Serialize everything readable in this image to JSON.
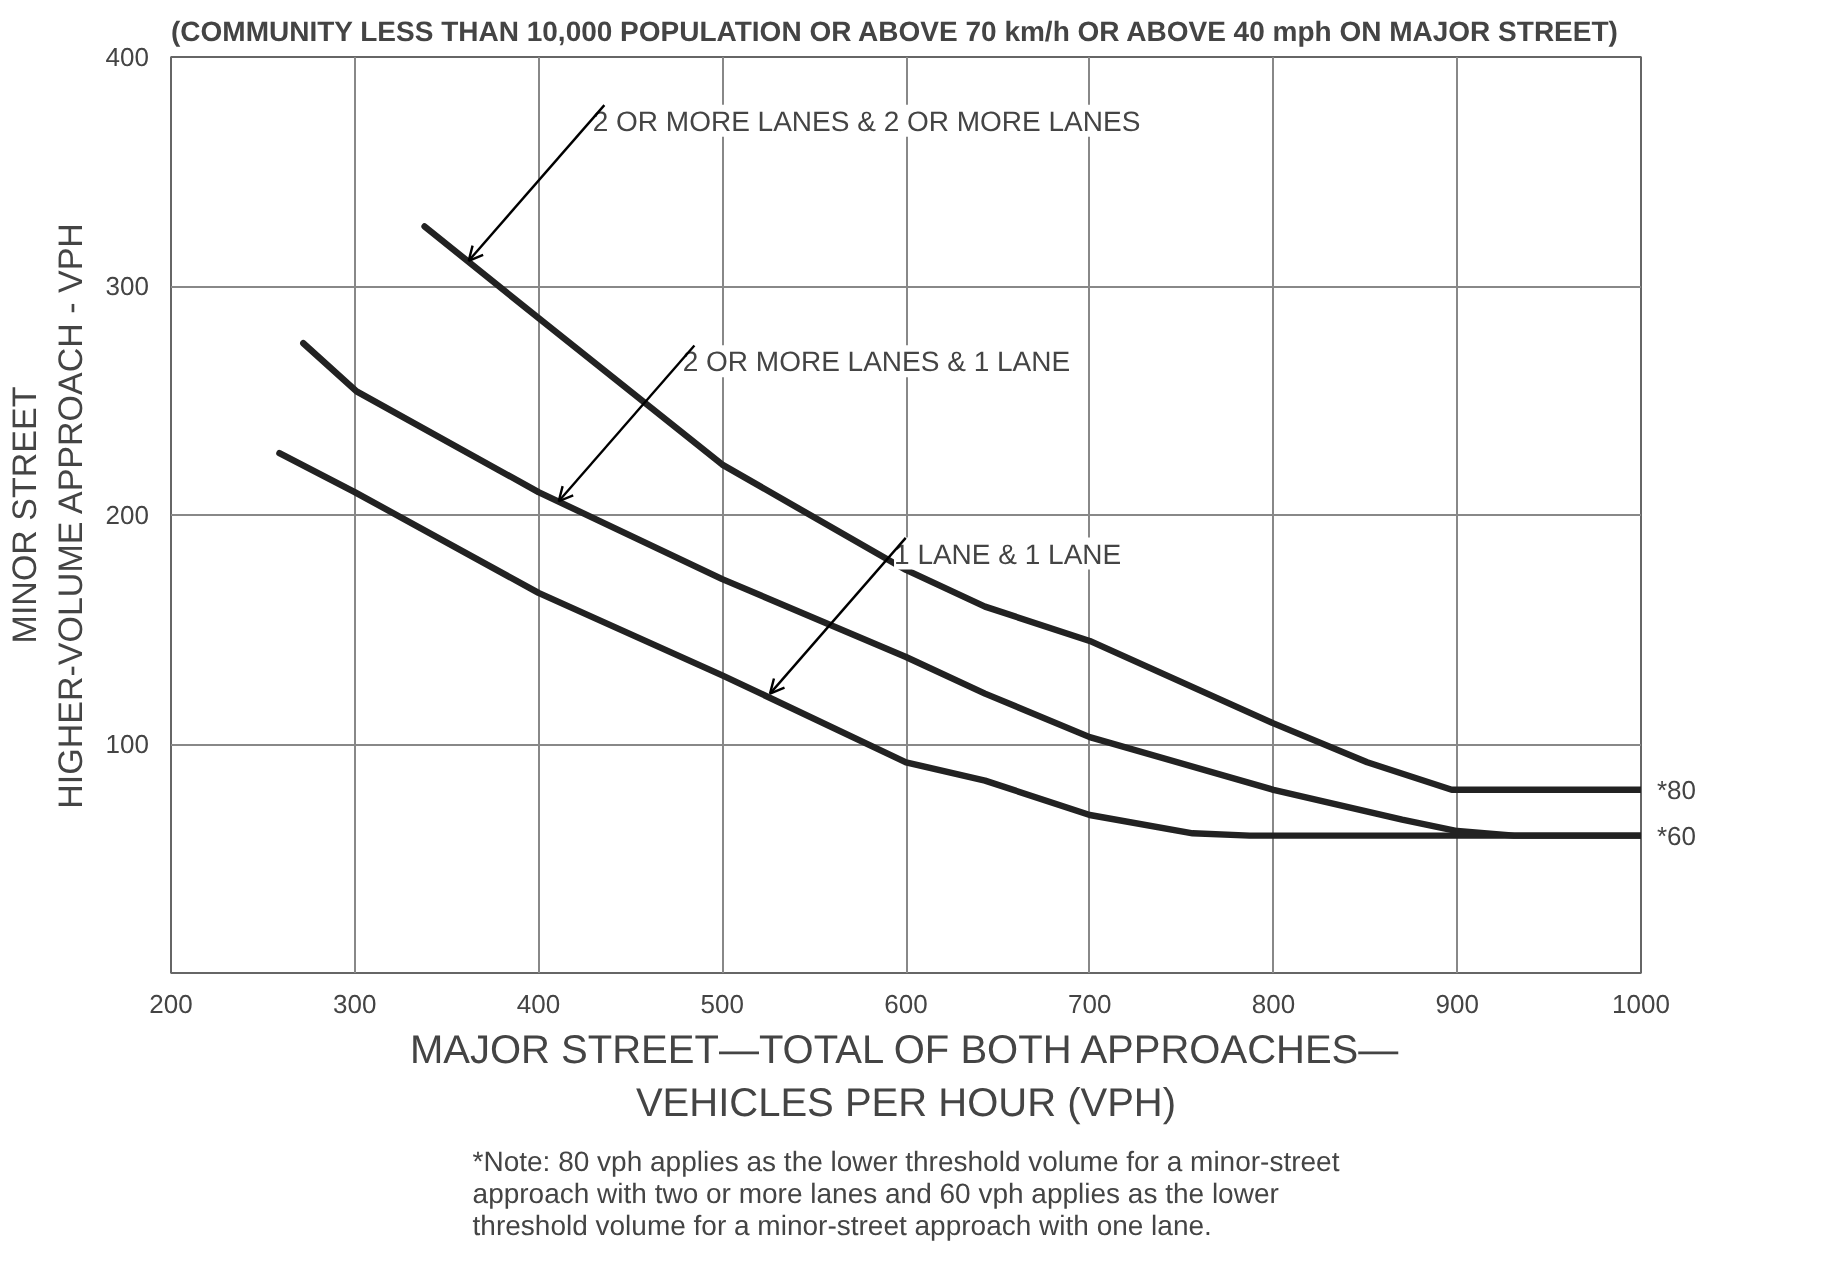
{
  "chart_data": {
    "type": "line",
    "title": "(COMMUNITY LESS THAN 10,000 POPULATION OR ABOVE 70 km/h OR ABOVE 40 mph ON MAJOR STREET)",
    "xlabel": "MAJOR STREET—TOTAL OF BOTH APPROACHES—\nVEHICLES PER HOUR (VPH)",
    "ylabel": "MINOR STREET\nHIGHER-VOLUME APPROACH - VPH",
    "xlim": [
      200,
      1000
    ],
    "ylim": [
      0,
      400
    ],
    "xticks": [
      200,
      300,
      400,
      500,
      600,
      700,
      800,
      900,
      1000
    ],
    "yticks": [
      {
        "value": 0,
        "label": null
      },
      100,
      200,
      300,
      400
    ],
    "grid": true,
    "marker": "none",
    "line_style": "solid",
    "series": [
      {
        "color": "#222222",
        "x": [
          338,
          400,
          500,
          600,
          643,
          700,
          800,
          851,
          897,
          1000
        ],
        "values": [
          326,
          286,
          222,
          176,
          160,
          145,
          109,
          92,
          80,
          80
        ]
      },
      {
        "color": "#222222",
        "x": [
          272,
          301,
          400,
          500,
          600,
          643,
          700,
          800,
          870,
          900,
          931,
          1000
        ],
        "values": [
          275,
          254,
          210,
          172,
          138,
          122,
          103,
          80,
          67,
          62,
          60,
          60
        ]
      },
      {
        "color": "#222222",
        "x": [
          259,
          300,
          400,
          500,
          600,
          643,
          700,
          756,
          787,
          1000
        ],
        "values": [
          227,
          210,
          166,
          130,
          92,
          84,
          69,
          61,
          60,
          60
        ]
      }
    ],
    "annotations": [
      {
        "text": "2 OR MORE LANES & 2 OR MORE LANES",
        "x": 362,
        "y": 311
      },
      {
        "text": "2 OR MORE LANES & 1 LANE",
        "x": 411,
        "y": 206
      },
      {
        "text": "1 LANE & 1 LANE",
        "x": 526,
        "y": 122
      },
      {
        "text": "*80",
        "x": 1000,
        "y": 80
      },
      {
        "text": "*60",
        "x": 1000,
        "y": 60
      },
      "*Note: 80 vph applies as the lower threshold volume for a minor-street\napproach with two or more lanes and 60 vph applies as the lower\nthreshold volume for a minor-street approach with one lane."
    ]
  }
}
